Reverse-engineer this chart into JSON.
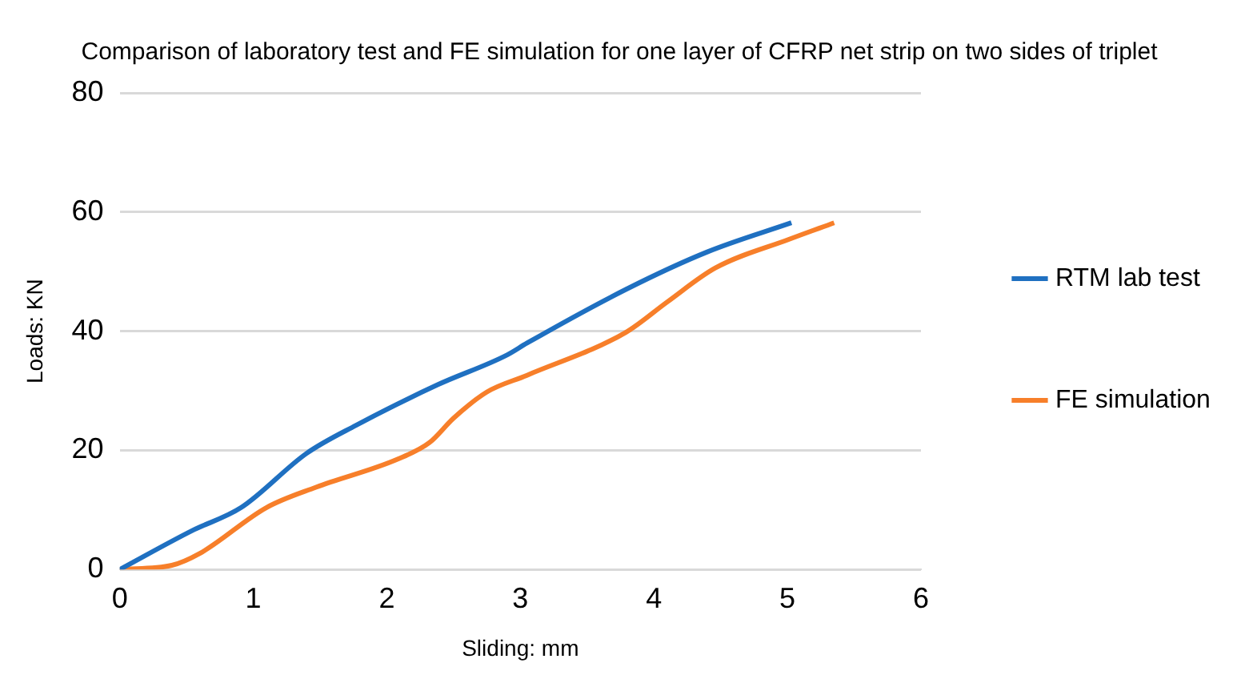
{
  "chart_data": {
    "type": "line",
    "title": "Comparison of laboratory test and FE simulation for one layer of CFRP net strip on two sides of triplet",
    "xlabel": "Sliding: mm",
    "ylabel": "Loads: KN",
    "xlim": [
      0,
      6
    ],
    "xticks": [
      0,
      1,
      2,
      3,
      4,
      5,
      6
    ],
    "ylim": [
      0,
      80
    ],
    "yticks": [
      0,
      20,
      40,
      60,
      80
    ],
    "grid": "y",
    "legend": "right",
    "marker": "none",
    "series": [
      {
        "name": "RTM lab test",
        "color": "#1f70c1",
        "x": [
          0,
          0.54,
          0.91,
          1.4,
          1.77,
          2.38,
          2.9,
          3.05,
          3.79,
          4.4,
          5.03
        ],
        "values": [
          0,
          6.5,
          10.4,
          19.5,
          24.2,
          31,
          36,
          38,
          47,
          53.3,
          58.2
        ]
      },
      {
        "name": "FE simulation",
        "color": "#f77f2a",
        "x": [
          0,
          0.39,
          0.6,
          1.1,
          1.47,
          2.08,
          2.32,
          2.5,
          2.75,
          3.05,
          3.79,
          4.1,
          4.46,
          5.01,
          5.35
        ],
        "values": [
          0,
          0.7,
          2.7,
          10.4,
          13.8,
          18.5,
          21.3,
          25.4,
          29.8,
          32.6,
          39.8,
          44.9,
          50.6,
          55.4,
          58.2
        ]
      }
    ]
  }
}
